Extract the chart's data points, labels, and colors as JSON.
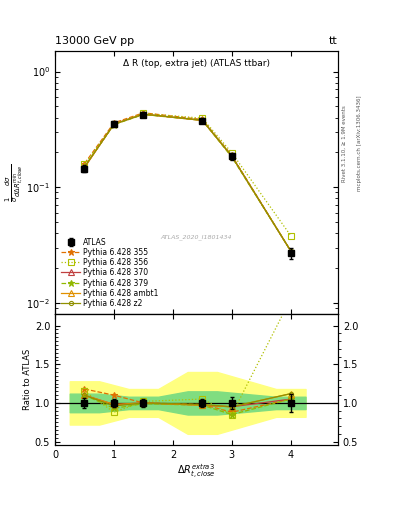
{
  "title_top": "13000 GeV pp",
  "title_top_right": "tt",
  "plot_title": "Δ R (top, extra jet) (ATLAS ttbar)",
  "ylabel_main": "$\\frac{1}{\\sigma}\\frac{d\\sigma}{d\\Delta R_{t,close}^{min}}$",
  "ylabel_ratio": "Ratio to ATLAS",
  "xlabel": "$\\Delta R_{t,close}^{extra3}$",
  "watermark": "ATLAS_2020_I1801434",
  "right_label1": "Rivet 3.1.10, ≥ 1.9M events",
  "right_label2": "mcplots.cern.ch [arXiv:1306.3436]",
  "x_pts": [
    0.5,
    1.0,
    1.5,
    2.5,
    3.0,
    4.0
  ],
  "atlas_y": [
    0.145,
    0.355,
    0.425,
    0.375,
    0.185,
    0.027
  ],
  "atlas_yerr": [
    0.01,
    0.018,
    0.02,
    0.018,
    0.014,
    0.003
  ],
  "series": [
    {
      "label": "Pythia 6.428 355",
      "color": "#e07000",
      "linestyle": "--",
      "marker": "*",
      "mfc": "none",
      "y": [
        0.16,
        0.36,
        0.44,
        0.385,
        0.188,
        0.028
      ]
    },
    {
      "label": "Pythia 6.428 356",
      "color": "#b0c000",
      "linestyle": ":",
      "marker": "s",
      "mfc": "none",
      "y": [
        0.158,
        0.352,
        0.435,
        0.395,
        0.198,
        0.038
      ]
    },
    {
      "label": "Pythia 6.428 370",
      "color": "#c04040",
      "linestyle": "-",
      "marker": "^",
      "mfc": "none",
      "y": [
        0.148,
        0.352,
        0.428,
        0.378,
        0.185,
        0.028
      ]
    },
    {
      "label": "Pythia 6.428 379",
      "color": "#90b800",
      "linestyle": "--",
      "marker": "*",
      "mfc": "none",
      "y": [
        0.15,
        0.348,
        0.425,
        0.378,
        0.182,
        0.028
      ]
    },
    {
      "label": "Pythia 6.428 ambt1",
      "color": "#e09000",
      "linestyle": "-",
      "marker": "^",
      "mfc": "none",
      "y": [
        0.148,
        0.352,
        0.428,
        0.378,
        0.185,
        0.028
      ]
    },
    {
      "label": "Pythia 6.428 z2",
      "color": "#909000",
      "linestyle": "-",
      "marker": "o",
      "mfc": "none",
      "y": [
        0.15,
        0.35,
        0.428,
        0.38,
        0.185,
        0.028
      ]
    }
  ],
  "ratio_x": [
    0.5,
    1.0,
    1.5,
    2.5,
    3.0,
    4.0
  ],
  "ratio_series": [
    {
      "label": "Pythia 6.428 355",
      "color": "#e07000",
      "linestyle": "--",
      "marker": "*",
      "mfc": "none",
      "y": [
        1.18,
        1.1,
        1.0,
        0.98,
        0.88,
        1.05
      ]
    },
    {
      "label": "Pythia 6.428 356",
      "color": "#b0c000",
      "linestyle": ":",
      "marker": "s",
      "mfc": "none",
      "y": [
        1.15,
        0.88,
        1.02,
        1.05,
        0.85,
        2.35
      ]
    },
    {
      "label": "Pythia 6.428 370",
      "color": "#c04040",
      "linestyle": "-",
      "marker": "^",
      "mfc": "none",
      "y": [
        1.1,
        0.98,
        1.0,
        0.97,
        0.95,
        1.05
      ]
    },
    {
      "label": "Pythia 6.428 379",
      "color": "#90b800",
      "linestyle": "--",
      "marker": "*",
      "mfc": "none",
      "y": [
        1.1,
        0.93,
        0.99,
        0.97,
        0.85,
        1.05
      ]
    },
    {
      "label": "Pythia 6.428 ambt1",
      "color": "#e09000",
      "linestyle": "-",
      "marker": "^",
      "mfc": "none",
      "y": [
        1.1,
        0.98,
        1.0,
        0.97,
        0.95,
        1.12
      ]
    },
    {
      "label": "Pythia 6.428 z2",
      "color": "#909000",
      "linestyle": "-",
      "marker": "o",
      "mfc": "none",
      "y": [
        1.1,
        0.96,
        1.0,
        0.98,
        0.95,
        1.12
      ]
    }
  ],
  "band_edges": [
    0.25,
    0.75,
    1.25,
    1.75,
    2.25,
    2.75,
    3.75,
    4.25
  ],
  "band_yellow_low": [
    0.72,
    0.72,
    0.82,
    0.82,
    0.6,
    0.6,
    0.82,
    0.82
  ],
  "band_yellow_high": [
    1.28,
    1.28,
    1.18,
    1.18,
    1.4,
    1.4,
    1.18,
    1.18
  ],
  "band_green_low": [
    0.88,
    0.88,
    0.92,
    0.92,
    0.85,
    0.85,
    0.92,
    0.92
  ],
  "band_green_high": [
    1.12,
    1.12,
    1.08,
    1.08,
    1.15,
    1.15,
    1.08,
    1.08
  ],
  "xlim": [
    0.0,
    4.8
  ],
  "ylim_main": [
    0.008,
    1.5
  ],
  "ylim_ratio": [
    0.45,
    2.15
  ]
}
